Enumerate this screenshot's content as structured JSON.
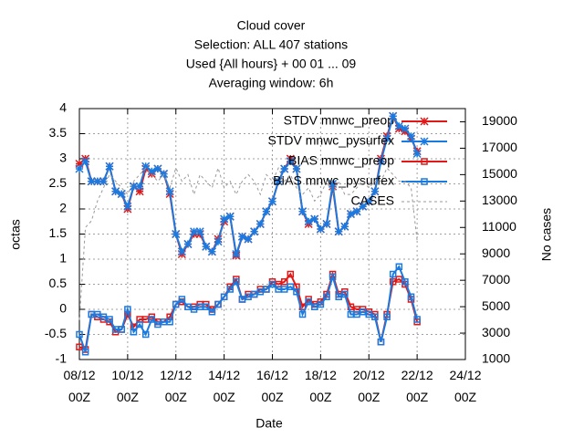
{
  "chart_data": {
    "type": "line",
    "title": [
      "Cloud cover",
      "Selection: ALL    407 stations",
      "Used {All hours} + 00 01 ... 09",
      "Averaging window:  6h"
    ],
    "xlabel": "Date",
    "ylabel": "octas",
    "y2label": "No cases",
    "xlim": [
      0,
      16
    ],
    "xticks": [
      {
        "value": 0,
        "label": "08/12\n00Z"
      },
      {
        "value": 2,
        "label": "10/12\n00Z"
      },
      {
        "value": 4,
        "label": "12/12\n00Z"
      },
      {
        "value": 6,
        "label": "14/12\n00Z"
      },
      {
        "value": 8,
        "label": "16/12\n00Z"
      },
      {
        "value": 10,
        "label": "18/12\n00Z"
      },
      {
        "value": 12,
        "label": "20/12\n00Z"
      },
      {
        "value": 14,
        "label": "22/12\n00Z"
      },
      {
        "value": 16,
        "label": "24/12\n00Z"
      }
    ],
    "ylim": [
      -1,
      4
    ],
    "yticks": [
      -1,
      -0.5,
      0,
      0.5,
      1,
      1.5,
      2,
      2.5,
      3,
      3.5,
      4
    ],
    "y2lim": [
      1000,
      20000
    ],
    "y2ticks": [
      1000,
      3000,
      5000,
      7000,
      9000,
      11000,
      13000,
      15000,
      17000,
      19000
    ],
    "grid": true,
    "legend": "top-right",
    "x": [
      0,
      0.25,
      0.5,
      0.75,
      1,
      1.25,
      1.5,
      1.75,
      2,
      2.25,
      2.5,
      2.75,
      3,
      3.25,
      3.5,
      3.75,
      4,
      4.25,
      4.5,
      4.75,
      5,
      5.25,
      5.5,
      5.75,
      6,
      6.25,
      6.5,
      6.75,
      7,
      7.25,
      7.5,
      7.75,
      8,
      8.25,
      8.5,
      8.75,
      9,
      9.25,
      9.5,
      9.75,
      10,
      10.25,
      10.5,
      10.75,
      11,
      11.25,
      11.5,
      11.75,
      12,
      12.25,
      12.5,
      12.75,
      13,
      13.25,
      13.5,
      13.75,
      14
    ],
    "series": [
      {
        "name": "STDV mnwc_preop",
        "color": "#e01818",
        "marker": "star",
        "values": [
          2.9,
          3.0,
          2.55,
          2.55,
          2.55,
          2.85,
          2.35,
          2.3,
          2.0,
          2.45,
          2.35,
          2.8,
          2.7,
          2.8,
          2.7,
          2.3,
          1.5,
          1.1,
          1.3,
          1.5,
          1.5,
          1.25,
          1.15,
          1.4,
          1.75,
          1.85,
          1.07,
          1.45,
          1.4,
          1.55,
          1.7,
          1.95,
          2.15,
          2.55,
          2.8,
          3.0,
          2.8,
          1.95,
          1.7,
          1.8,
          1.6,
          1.7,
          2.45,
          1.55,
          1.65,
          1.9,
          1.95,
          2.05,
          2.15,
          2.35,
          3.0,
          3.45,
          3.85,
          3.6,
          3.55,
          3.4,
          3.15
        ]
      },
      {
        "name": "STDV mnwc_pysurfex",
        "color": "#1a7ae0",
        "marker": "star",
        "values": [
          2.8,
          2.95,
          2.55,
          2.55,
          2.55,
          2.85,
          2.35,
          2.3,
          2.05,
          2.45,
          2.45,
          2.85,
          2.75,
          2.8,
          2.7,
          2.35,
          1.5,
          1.15,
          1.3,
          1.55,
          1.55,
          1.25,
          1.15,
          1.35,
          1.8,
          1.85,
          1.1,
          1.45,
          1.4,
          1.55,
          1.7,
          1.95,
          2.15,
          2.55,
          2.8,
          2.95,
          2.8,
          1.95,
          1.75,
          1.8,
          1.6,
          1.7,
          2.5,
          1.55,
          1.65,
          1.9,
          1.95,
          2.05,
          2.15,
          2.35,
          2.95,
          3.4,
          3.85,
          3.65,
          3.6,
          3.45,
          3.1
        ]
      },
      {
        "name": "BIAS mnwc_preop",
        "color": "#e01818",
        "marker": "square",
        "values": [
          -0.75,
          -0.8,
          -0.1,
          -0.15,
          -0.2,
          -0.25,
          -0.45,
          -0.4,
          -0.1,
          -0.35,
          -0.2,
          -0.2,
          -0.15,
          -0.25,
          -0.25,
          -0.15,
          0.1,
          0.15,
          0.05,
          0.05,
          0.1,
          0.1,
          0.0,
          0.1,
          0.25,
          0.45,
          0.6,
          0.2,
          0.3,
          0.3,
          0.4,
          0.4,
          0.55,
          0.5,
          0.55,
          0.7,
          0.45,
          0.05,
          0.2,
          0.1,
          0.15,
          0.3,
          0.7,
          0.3,
          0.35,
          0.05,
          0.0,
          0.0,
          -0.05,
          -0.1,
          -0.65,
          -0.1,
          0.55,
          0.6,
          0.5,
          0.2,
          -0.25
        ]
      },
      {
        "name": "BIAS mnwc_pysurfex",
        "color": "#1a7ae0",
        "marker": "square",
        "values": [
          -0.5,
          -0.85,
          -0.1,
          -0.1,
          -0.15,
          -0.2,
          -0.4,
          -0.4,
          0.0,
          -0.45,
          -0.3,
          -0.5,
          -0.2,
          -0.3,
          -0.25,
          -0.25,
          0.1,
          0.2,
          0.05,
          0.0,
          0.05,
          0.05,
          -0.05,
          0.1,
          0.25,
          0.4,
          0.55,
          0.2,
          0.25,
          0.3,
          0.35,
          0.4,
          0.5,
          0.4,
          0.4,
          0.45,
          0.35,
          -0.1,
          0.15,
          0.05,
          0.1,
          0.25,
          0.65,
          0.25,
          0.3,
          -0.1,
          -0.1,
          -0.05,
          -0.1,
          -0.15,
          -0.65,
          -0.15,
          0.7,
          0.85,
          0.55,
          0.25,
          -0.2
        ]
      },
      {
        "name": "CASES",
        "color": "#999999",
        "dash": true,
        "axis": "y2",
        "values": [
          4000,
          11000,
          11500,
          13000,
          14000,
          15000,
          14500,
          14000,
          13500,
          14500,
          15000,
          15500,
          15000,
          14500,
          15000,
          14000,
          15500,
          14500,
          15000,
          13500,
          15000,
          14500,
          14000,
          15500,
          14000,
          14500,
          13500,
          14500,
          15000,
          14500,
          13500,
          15000,
          14500,
          15500,
          14500,
          15000,
          14000,
          13500,
          14000,
          13000,
          13500,
          14500,
          13500,
          14500,
          13500,
          13500,
          14000,
          14500,
          14000,
          14500,
          14500,
          15500,
          15000,
          14500,
          14500,
          14000,
          10000
        ]
      }
    ]
  }
}
